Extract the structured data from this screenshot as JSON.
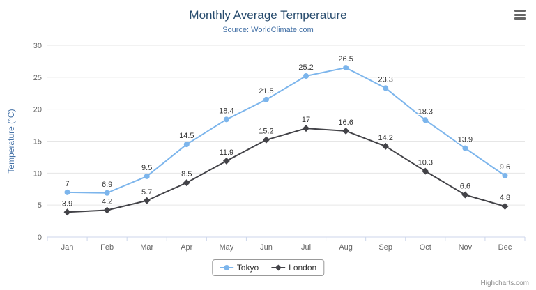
{
  "title": "Monthly Average Temperature",
  "subtitle": "Source: WorldClimate.com",
  "credits": "Highcharts.com",
  "colors": {
    "title_text": "#274b6d",
    "subtitle_text": "#4572a7",
    "axis_title_text": "#4572a7",
    "tick_text": "#666666",
    "grid_line": "#e6e6e6",
    "axis_line": "#ccd6eb",
    "data_label": "#333333",
    "legend_border": "#999999",
    "tokyo_series": "#7cb5ec",
    "london_series": "#434348"
  },
  "chart_data": {
    "type": "line",
    "title": "Monthly Average Temperature",
    "subtitle": "Source: WorldClimate.com",
    "categories": [
      "Jan",
      "Feb",
      "Mar",
      "Apr",
      "May",
      "Jun",
      "Jul",
      "Aug",
      "Sep",
      "Oct",
      "Nov",
      "Dec"
    ],
    "series": [
      {
        "name": "Tokyo",
        "color": "#7cb5ec",
        "marker": "circle",
        "values": [
          7,
          6.9,
          9.5,
          14.5,
          18.4,
          21.5,
          25.2,
          26.5,
          23.3,
          18.3,
          13.9,
          9.6
        ]
      },
      {
        "name": "London",
        "color": "#434348",
        "marker": "diamond",
        "values": [
          3.9,
          4.2,
          5.7,
          8.5,
          11.9,
          15.2,
          17,
          16.6,
          14.2,
          10.3,
          6.6,
          4.8
        ]
      }
    ],
    "xlabel": "",
    "ylabel": "Temperature (°C)",
    "ylim": [
      0,
      30
    ],
    "ytick_step": 5,
    "grid": true,
    "data_labels": true,
    "legend_position": "bottom"
  }
}
